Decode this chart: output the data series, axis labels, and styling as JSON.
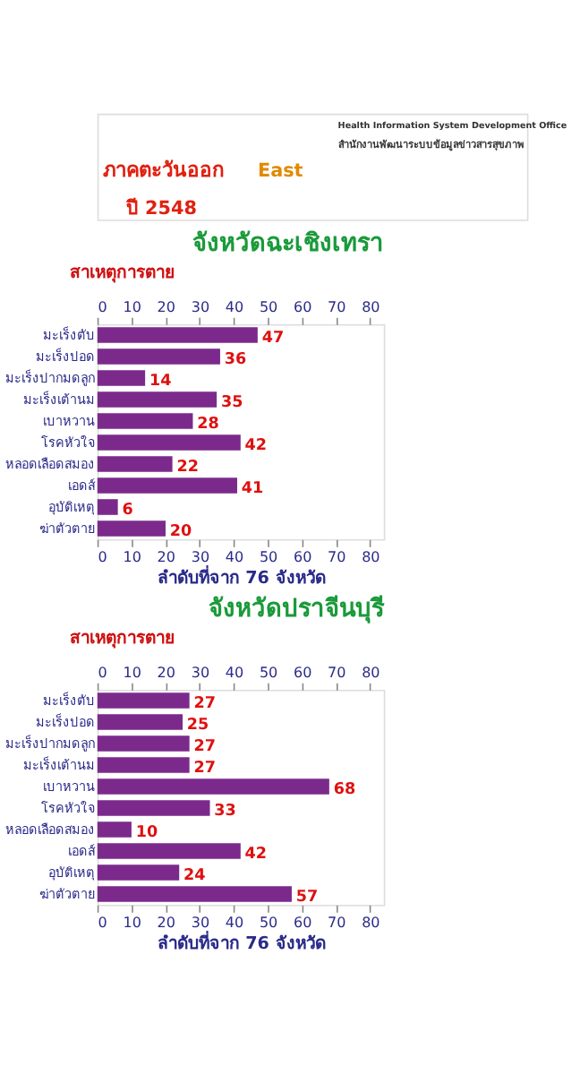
{
  "chart_data": [
    {
      "type": "bar",
      "orientation": "horizontal",
      "title": "จังหวัดฉะเชิงเทรา",
      "ylabel": "สาเหตุการตาย",
      "xlabel": "ลำดับที่จาก 76 จังหวัด",
      "annotations": [
        "ภาคตะวันออก",
        "East",
        "Health Information System Development Office",
        "สำนักงานพัฒนาระบบข้อมูลข่าวสารสุขภาพ",
        "ปี 2548"
      ],
      "categories": [
        "มะเร็งตับ",
        "มะเร็งปอด",
        "มะเร็งปากมดลูก",
        "มะเร็งเต้านม",
        "เบาหวาน",
        "โรคหัวใจ",
        "หลอดเลือดสมอง",
        "เอดส์",
        "อุบัติเหตุ",
        "ฆ่าตัวตาย"
      ],
      "values": [
        47,
        36,
        14,
        35,
        28,
        42,
        22,
        41,
        6,
        20
      ],
      "color": "#7b2a8c",
      "xlim": [
        0,
        84
      ],
      "xticks": [
        0,
        10,
        20,
        30,
        40,
        50,
        60,
        70,
        80
      ],
      "x2lim": [
        0,
        84
      ],
      "x2ticks": [
        0,
        10,
        20,
        30,
        40,
        50,
        60,
        70,
        80
      ],
      "data_labels": true,
      "grid": false
    },
    {
      "type": "bar",
      "orientation": "horizontal",
      "title": "จังหวัดปราจีนบุรี",
      "ylabel": "สาเหตุการตาย",
      "xlabel": "ลำดับที่จาก 76 จังหวัด",
      "categories": [
        "มะเร็งตับ",
        "มะเร็งปอด",
        "มะเร็งปากมดลูก",
        "มะเร็งเต้านม",
        "เบาหวาน",
        "โรคหัวใจ",
        "หลอดเลือดสมอง",
        "เอดส์",
        "อุบัติเหตุ",
        "ฆ่าตัวตาย"
      ],
      "values": [
        27,
        25,
        27,
        27,
        68,
        33,
        10,
        42,
        24,
        57
      ],
      "color": "#7b2a8c",
      "xlim": [
        0,
        84
      ],
      "xticks": [
        0,
        10,
        20,
        30,
        40,
        50,
        60,
        70,
        80
      ],
      "x2lim": [
        0,
        84
      ],
      "x2ticks": [
        0,
        10,
        20,
        30,
        40,
        50,
        60,
        70,
        80
      ],
      "data_labels": true,
      "grid": false
    }
  ]
}
